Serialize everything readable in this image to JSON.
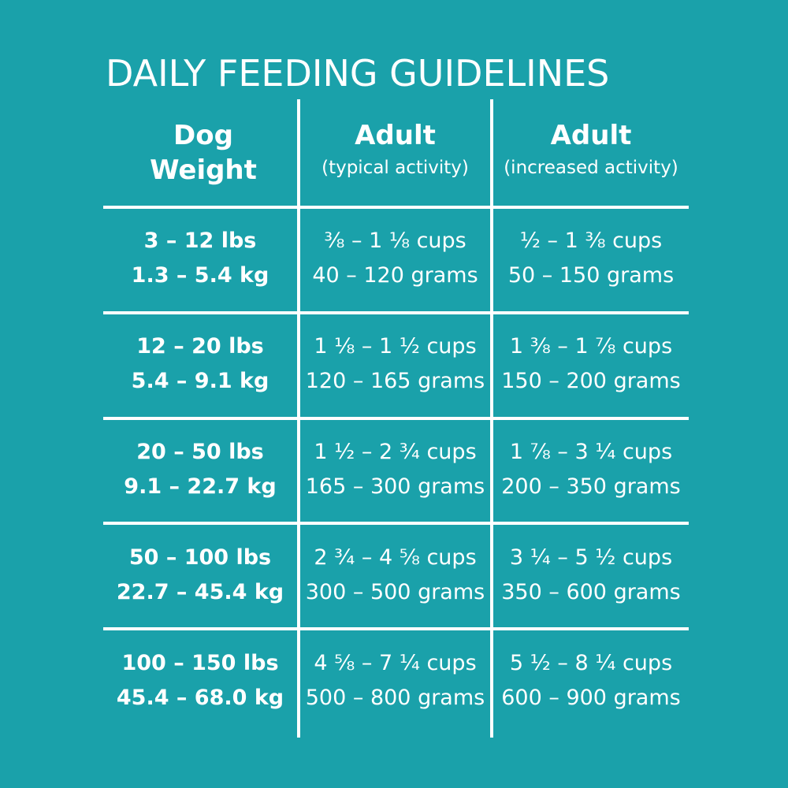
{
  "title": "DAILY FEEDING GUIDELINES",
  "headers": {
    "weight": [
      "Dog",
      "Weight"
    ],
    "adult_typical": {
      "main": "Adult",
      "sub": "(typical activity)"
    },
    "adult_increased": {
      "main": "Adult",
      "sub": "(increased activity)"
    }
  },
  "rows": [
    {
      "lbs": "3 – 12 lbs",
      "kg": "1.3 – 5.4 kg",
      "typical_cups": "⅜ – 1 ⅛ cups",
      "typical_grams": "40 – 120 grams",
      "increased_cups": "½ – 1 ⅜ cups",
      "increased_grams": "50 – 150 grams"
    },
    {
      "lbs": "12 – 20 lbs",
      "kg": "5.4 – 9.1 kg",
      "typical_cups": "1 ⅛ – 1 ½ cups",
      "typical_grams": "120 – 165 grams",
      "increased_cups": "1 ⅜ – 1 ⅞ cups",
      "increased_grams": "150 – 200 grams"
    },
    {
      "lbs": "20 – 50 lbs",
      "kg": "9.1 – 22.7 kg",
      "typical_cups": "1 ½ – 2 ¾ cups",
      "typical_grams": "165 – 300 grams",
      "increased_cups": "1 ⅞ – 3 ¼ cups",
      "increased_grams": "200 – 350 grams"
    },
    {
      "lbs": "50 – 100 lbs",
      "kg": "22.7 – 45.4 kg",
      "typical_cups": "2 ¾ – 4 ⅝ cups",
      "typical_grams": "300 – 500 grams",
      "increased_cups": "3 ¼ – 5 ½ cups",
      "increased_grams": "350 – 600 grams"
    },
    {
      "lbs": "100 – 150 lbs",
      "kg": "45.4 – 68.0 kg",
      "typical_cups": "4 ⅝ – 7 ¼ cups",
      "typical_grams": "500 – 800 grams",
      "increased_cups": "5 ½ – 8 ¼ cups",
      "increased_grams": "600 – 900 grams"
    }
  ],
  "colors": {
    "background": "#1aa1aa",
    "text": "#ffffff"
  }
}
